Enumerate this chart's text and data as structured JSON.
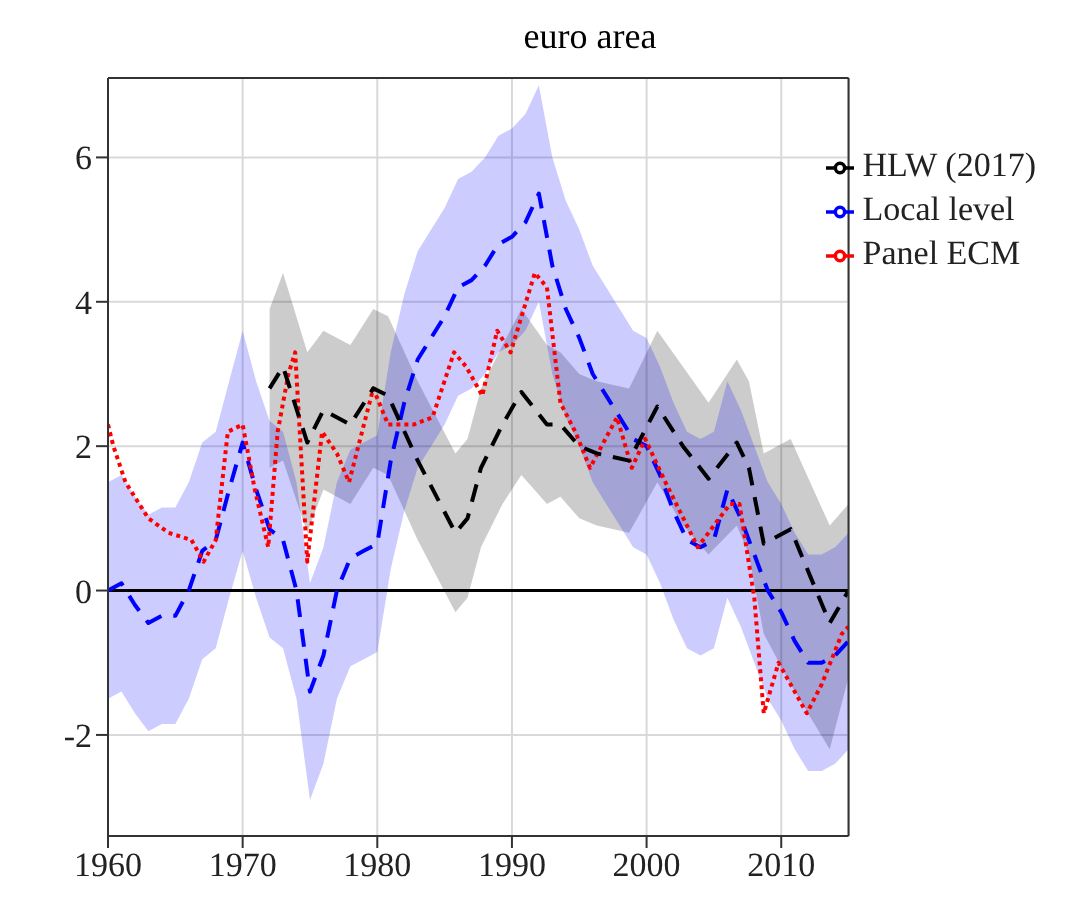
{
  "chart_data": {
    "type": "line",
    "title": "euro area",
    "xlim": [
      1960,
      2015
    ],
    "xticks": [
      1960,
      1970,
      1980,
      1990,
      2000,
      2010
    ],
    "ylim": [
      -3.4,
      7.1
    ],
    "yticks": [
      -2,
      0,
      2,
      4,
      6
    ],
    "grid": true,
    "legend": "top right",
    "marker": "none",
    "ref_lines": [
      {
        "axis": "y",
        "value": 0,
        "color": "#000000",
        "line_style": "solid"
      }
    ],
    "series": [
      {
        "name": "Local level",
        "color": "#0000ff",
        "line_style": "dashed",
        "x": [
          1960,
          1961,
          1962,
          1963,
          1964,
          1965,
          1966,
          1967,
          1968,
          1969,
          1970,
          1971,
          1972,
          1973,
          1974,
          1975,
          1976,
          1977,
          1978,
          1979,
          1980,
          1981,
          1982,
          1983,
          1984,
          1985,
          1986,
          1987,
          1988,
          1989,
          1990,
          1991,
          1992,
          1993,
          1994,
          1995,
          1996,
          1997,
          1998,
          1999,
          2000,
          2001,
          2002,
          2003,
          2004,
          2005,
          2006,
          2007,
          2008,
          2009,
          2010,
          2011,
          2012,
          2013,
          2014,
          2015
        ],
        "values": [
          0.0,
          0.1,
          -0.2,
          -0.45,
          -0.35,
          -0.35,
          0.0,
          0.55,
          0.7,
          1.4,
          2.05,
          1.4,
          0.85,
          0.7,
          0.0,
          -1.4,
          -0.9,
          0.0,
          0.45,
          0.55,
          0.65,
          1.8,
          2.6,
          3.2,
          3.5,
          3.8,
          4.2,
          4.3,
          4.5,
          4.8,
          4.9,
          5.1,
          5.5,
          4.5,
          3.9,
          3.5,
          3.0,
          2.7,
          2.4,
          2.1,
          2.0,
          1.6,
          1.1,
          0.7,
          0.6,
          0.7,
          1.4,
          1.0,
          0.5,
          0.0,
          -0.3,
          -0.7,
          -1.0,
          -1.0,
          -0.9,
          -0.7
        ],
        "upper": [
          1.5,
          1.6,
          1.3,
          1.05,
          1.15,
          1.15,
          1.5,
          2.05,
          2.2,
          2.9,
          3.6,
          2.9,
          2.35,
          2.2,
          1.5,
          0.1,
          0.6,
          1.5,
          1.95,
          2.05,
          2.15,
          3.3,
          4.1,
          4.7,
          5.0,
          5.3,
          5.7,
          5.8,
          6.0,
          6.3,
          6.4,
          6.6,
          7.0,
          6.0,
          5.4,
          5.0,
          4.5,
          4.2,
          3.9,
          3.6,
          3.5,
          3.1,
          2.6,
          2.2,
          2.1,
          2.2,
          2.9,
          2.5,
          2.0,
          1.5,
          1.2,
          0.8,
          0.5,
          0.5,
          0.6,
          0.8
        ],
        "lower": [
          -1.5,
          -1.4,
          -1.7,
          -1.95,
          -1.85,
          -1.85,
          -1.5,
          -0.95,
          -0.8,
          -0.1,
          0.55,
          -0.1,
          -0.65,
          -0.8,
          -1.5,
          -2.9,
          -2.4,
          -1.5,
          -1.05,
          -0.95,
          -0.85,
          0.3,
          1.1,
          1.7,
          2.0,
          2.3,
          2.7,
          2.8,
          3.0,
          3.3,
          3.4,
          3.6,
          4.0,
          3.0,
          2.4,
          2.0,
          1.5,
          1.2,
          0.9,
          0.6,
          0.5,
          0.1,
          -0.4,
          -0.8,
          -0.9,
          -0.8,
          -0.1,
          -0.5,
          -1.0,
          -1.5,
          -1.8,
          -2.2,
          -2.5,
          -2.5,
          -2.4,
          -2.2
        ]
      },
      {
        "name": "Panel ECM",
        "color": "#ff0000",
        "line_style": "dotted",
        "x": [
          1960,
          1960.4,
          1961.3,
          1963,
          1964.5,
          1966.2,
          1967.1,
          1968,
          1968.9,
          1970,
          1970.9,
          1971.9,
          1972.6,
          1973.4,
          1973.9,
          1974.8,
          1975.9,
          1977,
          1977.9,
          1979.7,
          1980.8,
          1982.7,
          1984.1,
          1985.7,
          1986.6,
          1987.8,
          1988.9,
          1989.9,
          1991.7,
          1992.6,
          1993.6,
          1994.7,
          1995.8,
          1997.8,
          1998.9,
          1999.9,
          2001.4,
          2003.8,
          2006.2,
          2006.9,
          2008,
          2008.7,
          2009.8,
          2011.9,
          2013,
          2014.5,
          2015
        ],
        "values": [
          2.3,
          2.0,
          1.5,
          1.0,
          0.8,
          0.7,
          0.4,
          0.7,
          2.2,
          2.3,
          1.4,
          0.6,
          2.2,
          3.0,
          3.3,
          0.4,
          2.2,
          1.9,
          1.5,
          2.8,
          2.3,
          2.3,
          2.4,
          3.3,
          3.1,
          2.7,
          3.6,
          3.3,
          4.4,
          4.2,
          2.6,
          2.2,
          1.7,
          2.4,
          1.7,
          2.1,
          1.5,
          0.6,
          1.2,
          1.2,
          -0.1,
          -1.7,
          -1.0,
          -1.7,
          -1.3,
          -0.6,
          -0.5
        ]
      },
      {
        "name": "HLW (2017)",
        "color": "#000000",
        "line_style": "dashed",
        "x": [
          1972,
          1973,
          1974.8,
          1976,
          1978,
          1979.7,
          1980.8,
          1983,
          1985.8,
          1986.7,
          1987.7,
          1989.3,
          1990.7,
          1992.6,
          1993.6,
          1995,
          1996.3,
          1998.7,
          2000.8,
          2002.7,
          2004.6,
          2006.7,
          2007.6,
          2008.7,
          2010.7,
          2013.6,
          2015
        ],
        "values": [
          2.8,
          3.1,
          2.05,
          2.5,
          2.3,
          2.8,
          2.7,
          1.8,
          0.8,
          1.0,
          1.7,
          2.3,
          2.75,
          2.3,
          2.3,
          2.0,
          1.9,
          1.8,
          2.55,
          2.0,
          1.55,
          2.05,
          1.7,
          0.65,
          0.85,
          -0.45,
          0.0
        ],
        "upper": [
          3.9,
          4.4,
          3.3,
          3.6,
          3.4,
          3.9,
          3.8,
          2.9,
          1.9,
          2.1,
          2.8,
          3.4,
          3.9,
          3.4,
          3.3,
          3.0,
          2.9,
          2.8,
          3.6,
          3.1,
          2.6,
          3.2,
          2.9,
          1.9,
          2.1,
          0.9,
          1.2
        ],
        "lower": [
          1.7,
          1.8,
          0.8,
          1.4,
          1.2,
          1.7,
          1.6,
          0.7,
          -0.3,
          -0.1,
          0.6,
          1.2,
          1.6,
          1.2,
          1.3,
          1.0,
          0.9,
          0.8,
          1.5,
          0.9,
          0.5,
          0.9,
          0.5,
          -0.6,
          -1.3,
          -2.2,
          -1.2
        ]
      }
    ]
  }
}
